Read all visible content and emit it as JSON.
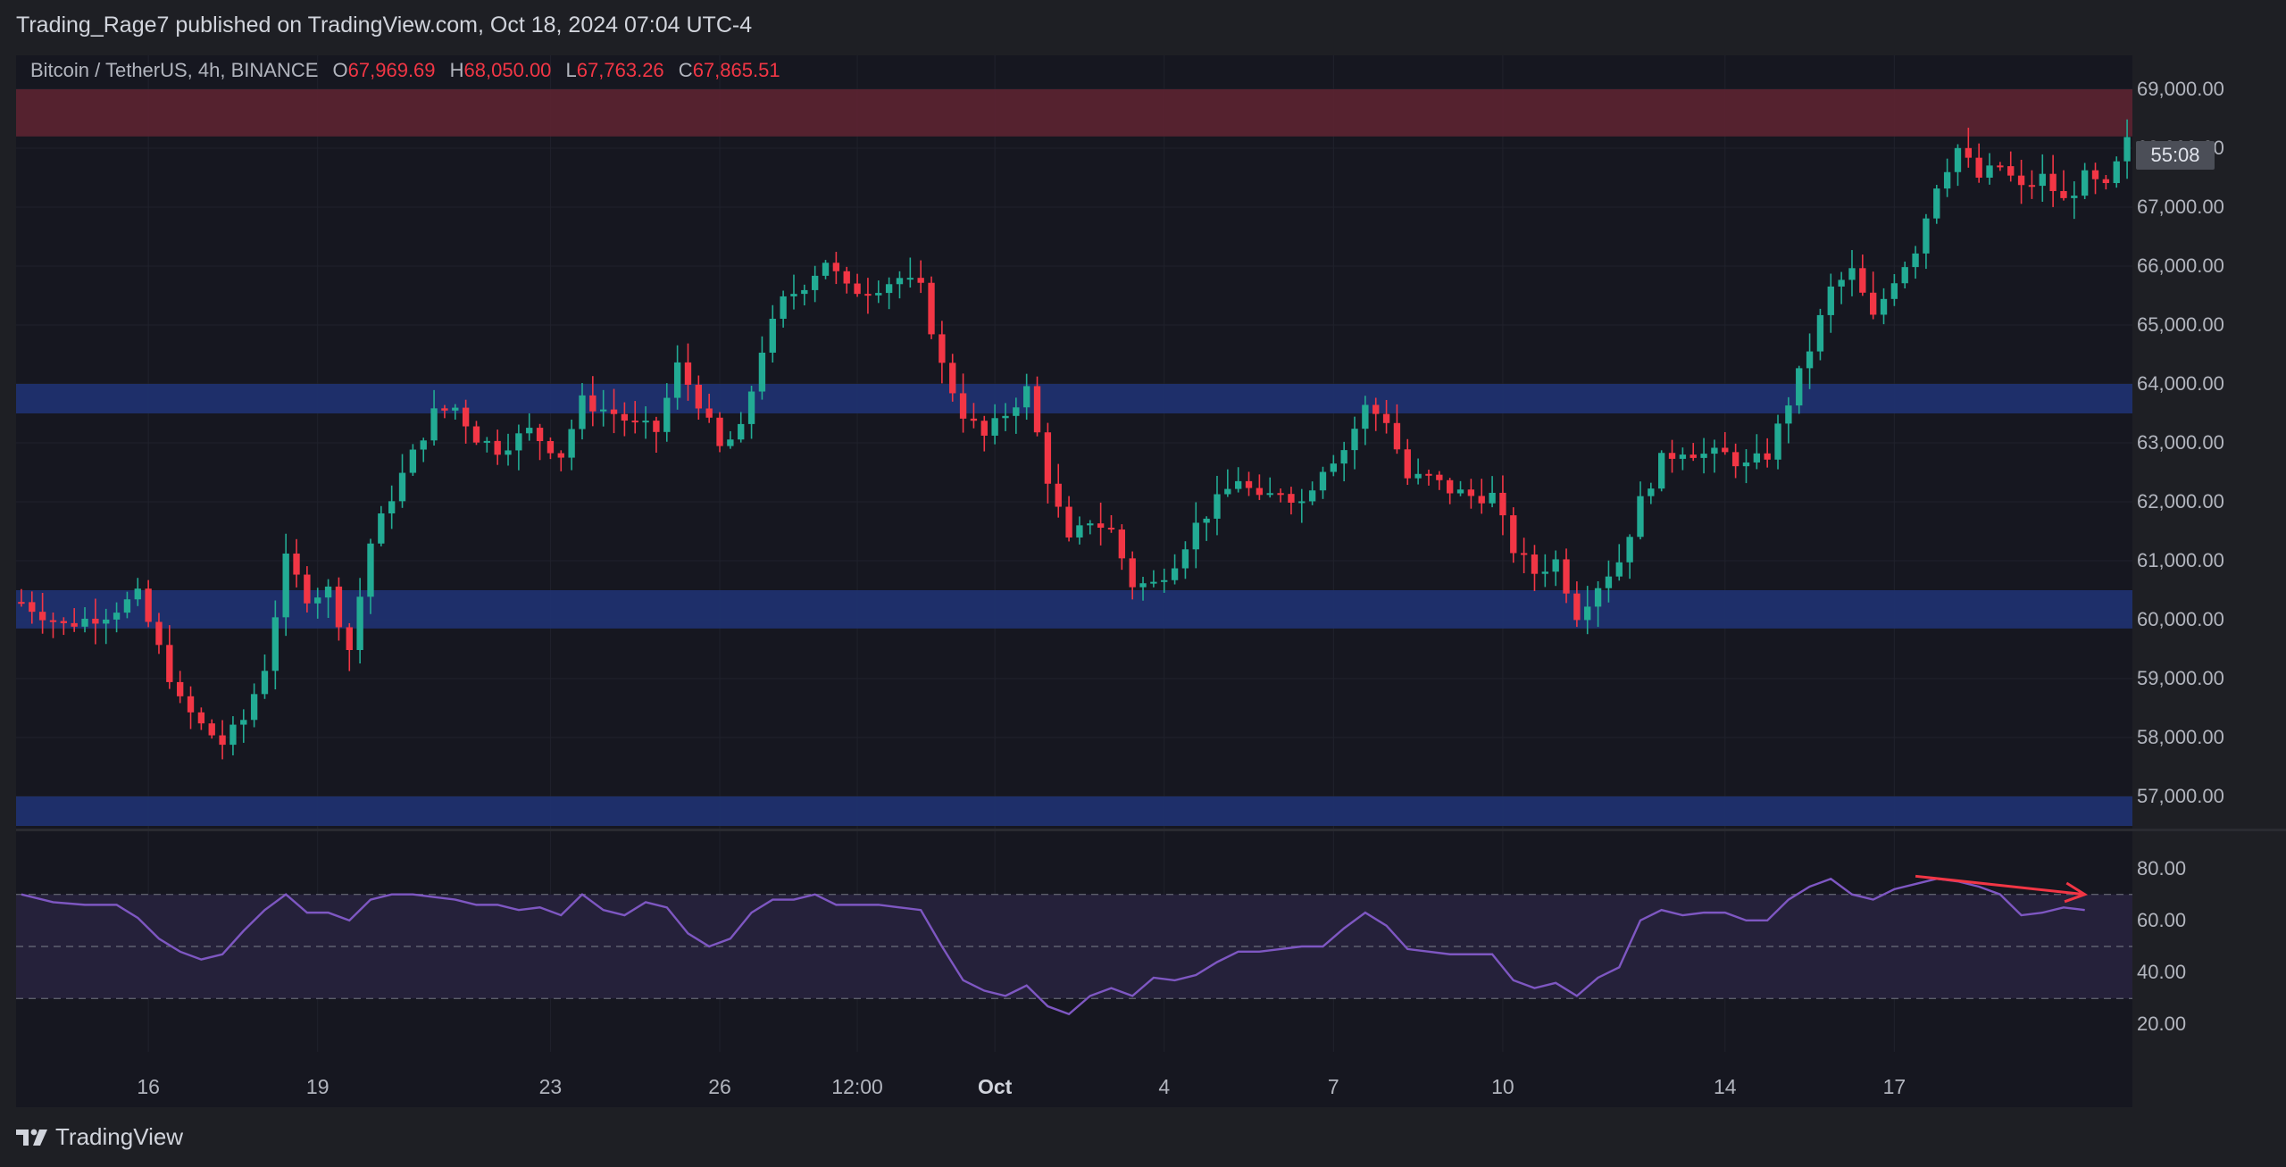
{
  "header": {
    "published_text": "Trading_Rage7 published on TradingView.com, Oct 18, 2024 07:04 UTC-4"
  },
  "legend": {
    "symbol": "Bitcoin / TetherUS, 4h, BINANCE",
    "open_label": "O",
    "open_value": "67,969.69",
    "high_label": "H",
    "high_value": "68,050.00",
    "low_label": "L",
    "low_value": "67,763.26",
    "close_label": "C",
    "close_value": "67,865.51"
  },
  "price_axis": {
    "labels": [
      "69,000.00",
      "68,000.00",
      "67,000.00",
      "66,000.00",
      "65,000.00",
      "64,000.00",
      "63,000.00",
      "62,000.00",
      "61,000.00",
      "60,000.00",
      "59,000.00",
      "58,000.00",
      "57,000.00"
    ],
    "countdown": "55:08"
  },
  "rsi_axis": {
    "labels": [
      "80.00",
      "60.00",
      "40.00",
      "20.00"
    ]
  },
  "time_axis": {
    "labels": [
      "16",
      "19",
      "23",
      "26",
      "12:00",
      "Oct",
      "4",
      "7",
      "10",
      "14",
      "17"
    ]
  },
  "footer": {
    "brand": "TradingView"
  },
  "colors": {
    "up": "#22ab94",
    "down": "#f23645",
    "resistance_zone": "#5c2331",
    "support_zone": "#1f3272",
    "rsi_line": "#7e57c2",
    "rsi_band": "#25213a",
    "arrow": "#f23645"
  },
  "chart_data": {
    "type": "candlestick",
    "symbol": "BTCUSDT",
    "interval": "4h",
    "ylim": [
      56300,
      69500
    ],
    "zones": [
      {
        "kind": "resistance",
        "from": 68200,
        "to": 69000
      },
      {
        "kind": "support",
        "from": 63500,
        "to": 64000
      },
      {
        "kind": "support",
        "from": 59850,
        "to": 60500
      },
      {
        "kind": "support",
        "from": 56500,
        "to": 57000
      }
    ],
    "close_path": [
      [
        0,
        60300
      ],
      [
        4,
        59900
      ],
      [
        8,
        60100
      ],
      [
        11,
        60400
      ],
      [
        13,
        59500
      ],
      [
        15,
        58600
      ],
      [
        17,
        58200
      ],
      [
        19,
        57900
      ],
      [
        21,
        58300
      ],
      [
        23,
        59200
      ],
      [
        25,
        61000
      ],
      [
        27,
        60400
      ],
      [
        29,
        60500
      ],
      [
        31,
        59500
      ],
      [
        33,
        61300
      ],
      [
        35,
        62100
      ],
      [
        37,
        62800
      ],
      [
        39,
        63500
      ],
      [
        41,
        63600
      ],
      [
        43,
        63100
      ],
      [
        45,
        62900
      ],
      [
        48,
        63200
      ],
      [
        51,
        62800
      ],
      [
        53,
        63700
      ],
      [
        56,
        63500
      ],
      [
        58,
        63300
      ],
      [
        60,
        63200
      ],
      [
        62,
        64300
      ],
      [
        64,
        63700
      ],
      [
        66,
        62900
      ],
      [
        68,
        63200
      ],
      [
        70,
        64600
      ],
      [
        72,
        65400
      ],
      [
        74,
        65700
      ],
      [
        76,
        66100
      ],
      [
        78,
        65600
      ],
      [
        80,
        65600
      ],
      [
        83,
        65800
      ],
      [
        85,
        65600
      ],
      [
        87,
        64300
      ],
      [
        89,
        63500
      ],
      [
        91,
        63100
      ],
      [
        93,
        63500
      ],
      [
        95,
        63900
      ],
      [
        97,
        62400
      ],
      [
        99,
        61300
      ],
      [
        101,
        61700
      ],
      [
        103,
        61500
      ],
      [
        105,
        60600
      ],
      [
        107,
        60600
      ],
      [
        109,
        61000
      ],
      [
        111,
        61600
      ],
      [
        113,
        62000
      ],
      [
        115,
        62400
      ],
      [
        117,
        62000
      ],
      [
        119,
        62200
      ],
      [
        121,
        62000
      ],
      [
        123,
        62600
      ],
      [
        125,
        62900
      ],
      [
        127,
        63600
      ],
      [
        129,
        63400
      ],
      [
        131,
        62400
      ],
      [
        133,
        62400
      ],
      [
        135,
        62200
      ],
      [
        137,
        62100
      ],
      [
        139,
        62100
      ],
      [
        141,
        61200
      ],
      [
        143,
        60800
      ],
      [
        145,
        61000
      ],
      [
        147,
        60100
      ],
      [
        149,
        60600
      ],
      [
        151,
        61000
      ],
      [
        153,
        62000
      ],
      [
        155,
        62700
      ],
      [
        157,
        62900
      ],
      [
        159,
        62800
      ],
      [
        161,
        62800
      ],
      [
        163,
        62600
      ],
      [
        165,
        62800
      ],
      [
        167,
        63700
      ],
      [
        169,
        64600
      ],
      [
        171,
        65600
      ],
      [
        173,
        65900
      ],
      [
        175,
        65100
      ],
      [
        177,
        65800
      ],
      [
        179,
        66300
      ],
      [
        181,
        67400
      ],
      [
        183,
        68000
      ],
      [
        185,
        67500
      ],
      [
        187,
        67700
      ],
      [
        189,
        67300
      ],
      [
        191,
        67500
      ],
      [
        193,
        67100
      ],
      [
        195,
        67500
      ],
      [
        197,
        67300
      ],
      [
        199,
        68100
      ]
    ],
    "rsi": {
      "levels": [
        70,
        50,
        30
      ],
      "ylim": [
        15,
        85
      ],
      "path": [
        [
          0,
          70
        ],
        [
          3,
          67
        ],
        [
          6,
          66
        ],
        [
          9,
          66
        ],
        [
          11,
          61
        ],
        [
          13,
          53
        ],
        [
          15,
          48
        ],
        [
          17,
          45
        ],
        [
          19,
          47
        ],
        [
          21,
          56
        ],
        [
          23,
          64
        ],
        [
          25,
          70
        ],
        [
          27,
          63
        ],
        [
          29,
          63
        ],
        [
          31,
          60
        ],
        [
          33,
          68
        ],
        [
          35,
          70
        ],
        [
          37,
          70
        ],
        [
          39,
          69
        ],
        [
          41,
          68
        ],
        [
          43,
          66
        ],
        [
          45,
          66
        ],
        [
          47,
          64
        ],
        [
          49,
          65
        ],
        [
          51,
          62
        ],
        [
          53,
          70
        ],
        [
          55,
          64
        ],
        [
          57,
          62
        ],
        [
          59,
          67
        ],
        [
          61,
          65
        ],
        [
          63,
          55
        ],
        [
          65,
          50
        ],
        [
          67,
          53
        ],
        [
          69,
          63
        ],
        [
          71,
          68
        ],
        [
          73,
          68
        ],
        [
          75,
          70
        ],
        [
          77,
          66
        ],
        [
          79,
          66
        ],
        [
          81,
          66
        ],
        [
          83,
          65
        ],
        [
          85,
          64
        ],
        [
          87,
          50
        ],
        [
          89,
          37
        ],
        [
          91,
          33
        ],
        [
          93,
          31
        ],
        [
          95,
          35
        ],
        [
          97,
          27
        ],
        [
          99,
          24
        ],
        [
          101,
          31
        ],
        [
          103,
          34
        ],
        [
          105,
          31
        ],
        [
          107,
          38
        ],
        [
          109,
          37
        ],
        [
          111,
          39
        ],
        [
          113,
          44
        ],
        [
          115,
          48
        ],
        [
          117,
          48
        ],
        [
          119,
          49
        ],
        [
          121,
          50
        ],
        [
          123,
          50
        ],
        [
          125,
          57
        ],
        [
          127,
          63
        ],
        [
          129,
          58
        ],
        [
          131,
          49
        ],
        [
          133,
          48
        ],
        [
          135,
          47
        ],
        [
          137,
          47
        ],
        [
          139,
          47
        ],
        [
          141,
          37
        ],
        [
          143,
          34
        ],
        [
          145,
          36
        ],
        [
          147,
          31
        ],
        [
          149,
          38
        ],
        [
          151,
          42
        ],
        [
          153,
          60
        ],
        [
          155,
          64
        ],
        [
          157,
          62
        ],
        [
          159,
          63
        ],
        [
          161,
          63
        ],
        [
          163,
          60
        ],
        [
          165,
          60
        ],
        [
          167,
          68
        ],
        [
          169,
          73
        ],
        [
          171,
          76
        ],
        [
          173,
          70
        ],
        [
          175,
          68
        ],
        [
          177,
          72
        ],
        [
          179,
          74
        ],
        [
          181,
          76
        ],
        [
          183,
          75
        ],
        [
          185,
          73
        ],
        [
          187,
          70
        ],
        [
          189,
          62
        ],
        [
          191,
          63
        ],
        [
          193,
          65
        ],
        [
          195,
          64
        ]
      ],
      "divergence_arrow": {
        "from": [
          179,
          77
        ],
        "to": [
          195,
          70
        ]
      }
    },
    "x_ticks": [
      {
        "label": "16",
        "x": 12
      },
      {
        "label": "19",
        "x": 28
      },
      {
        "label": "23",
        "x": 50
      },
      {
        "label": "26",
        "x": 66
      },
      {
        "label": "12:00",
        "x": 79
      },
      {
        "label": "Oct",
        "x": 92
      },
      {
        "label": "4",
        "x": 108
      },
      {
        "label": "7",
        "x": 124
      },
      {
        "label": "10",
        "x": 140
      },
      {
        "label": "14",
        "x": 161
      },
      {
        "label": "17",
        "x": 177
      }
    ],
    "ohlc_last": {
      "open": 67969.69,
      "high": 68050.0,
      "low": 67763.26,
      "close": 67865.51
    }
  }
}
